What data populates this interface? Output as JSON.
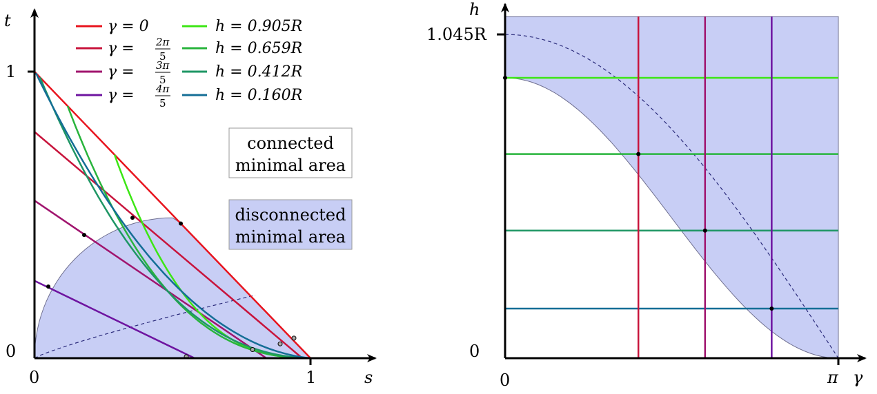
{
  "chart_data": [
    {
      "type": "line",
      "xlabel": "s",
      "ylabel": "t",
      "xlim": [
        0,
        1
      ],
      "ylim": [
        0,
        1
      ],
      "x_ticks": [
        "0",
        "1"
      ],
      "y_ticks": [
        "0",
        "1"
      ],
      "legend": [
        {
          "label": "γ = 0",
          "color": "#e8141e"
        },
        {
          "label": "γ = 2π/5",
          "color": "#c8143c"
        },
        {
          "label": "γ = 3π/5",
          "color": "#a0146e"
        },
        {
          "label": "γ = 4π/5",
          "color": "#6e14a0"
        },
        {
          "label": "h = 0.905R",
          "color": "#3ce614"
        },
        {
          "label": "h = 0.659R",
          "color": "#28b43c"
        },
        {
          "label": "h = 0.412R",
          "color": "#1e9664"
        },
        {
          "label": "h = 0.160R",
          "color": "#146e96"
        }
      ],
      "gamma_lines": [
        {
          "gamma": "0",
          "t_intercept": 1.0,
          "s_intercept": 1.0
        },
        {
          "gamma": "2π/5",
          "t_intercept": 0.79,
          "s_intercept": 0.97
        },
        {
          "gamma": "3π/5",
          "t_intercept": 0.55,
          "s_intercept": 0.84
        },
        {
          "gamma": "4π/5",
          "t_intercept": 0.27,
          "s_intercept": 0.58
        }
      ],
      "h_curves": [
        {
          "h": "0.905R",
          "s_start": 0.29,
          "t_start": 0.71
        },
        {
          "h": "0.659R",
          "s_start": 0.12,
          "t_start": 0.88
        },
        {
          "h": "0.412R",
          "s_start": 0.02,
          "t_start": 0.98
        },
        {
          "h": "0.160R",
          "s_start": 0.005,
          "t_start": 0.995
        }
      ],
      "region_labels": [
        "connected\nminimal area",
        "disconnected\nminimal area"
      ],
      "region_colors": {
        "connected": "#ffffff",
        "disconnected": "#c8cef5"
      }
    },
    {
      "type": "line",
      "xlabel": "γ",
      "ylabel": "h",
      "xlim": [
        0,
        3.14159
      ],
      "ylim": [
        0,
        1.045
      ],
      "x_ticks": [
        "0",
        "π"
      ],
      "y_ticks": [
        "0",
        "1.045R"
      ],
      "boundary_h_at_gamma0": 0.905,
      "gamma_verticals": [
        0,
        1.2566,
        1.885,
        2.513
      ],
      "h_horizontals": [
        0.905,
        0.659,
        0.412,
        0.16
      ],
      "dashed_curve": "h = 1.045R at γ=0 decreasing to 0 at γ=π"
    }
  ],
  "text": {
    "left_xlabel": "s",
    "left_ylabel": "t",
    "left_x0": "0",
    "left_x1": "1",
    "left_y0": "0",
    "left_y1": "1",
    "right_xlabel": "γ",
    "right_ylabel": "h",
    "right_x0": "0",
    "right_xpi": "π",
    "right_y0": "0",
    "right_ytop": "1.045R",
    "leg_g0": "γ = 0",
    "leg_g1_pre": "γ =",
    "leg_g1_num": "2π",
    "leg_g1_den": "5",
    "leg_g2_pre": "γ =",
    "leg_g2_num": "3π",
    "leg_g2_den": "5",
    "leg_g3_pre": "γ =",
    "leg_g3_num": "4π",
    "leg_g3_den": "5",
    "leg_h0": "h = 0.905R",
    "leg_h1": "h = 0.659R",
    "leg_h2": "h = 0.412R",
    "leg_h3": "h = 0.160R",
    "connected_l1": "connected",
    "connected_l2": "minimal area",
    "disconnected_l1": "disconnected",
    "disconnected_l2": "minimal area"
  },
  "colors": {
    "shade": "#c8cef5",
    "gamma0": "#e8141e",
    "gamma1": "#c8143c",
    "gamma2": "#a0146e",
    "gamma3": "#6e14a0",
    "h0": "#3ce614",
    "h1": "#28b43c",
    "h2": "#1e9664",
    "h3": "#146e96",
    "dashed": "#2a2a7a"
  }
}
